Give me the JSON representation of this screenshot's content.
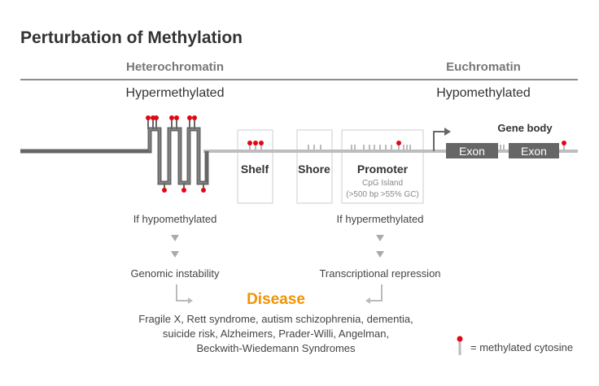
{
  "title": "Perturbation of Methylation",
  "left": {
    "header": "Heterochromatin",
    "state": "Hypermethylated",
    "condition": "If hypomethylated",
    "outcome": "Genomic instability"
  },
  "right": {
    "header": "Euchromatin",
    "state": "Hypomethylated",
    "condition": "If hypermethylated",
    "outcome": "Transcriptional repression"
  },
  "regions": {
    "shelf": "Shelf",
    "shore": "Shore",
    "promoter": "Promoter",
    "promoter_sub1": "CpG Island",
    "promoter_sub2": "(>500 bp >55% GC)",
    "gene_body": "Gene body",
    "exon1": "Exon",
    "exon2": "Exon"
  },
  "disease": {
    "title": "Disease",
    "lines": [
      "Fragile X, Rett syndrome, autism schizophrenia, dementia,",
      "suicide risk, Alzheimers, Prader-Willi, Angelman,",
      "Beckwith-Wiedemann Syndromes"
    ]
  },
  "legend": {
    "label": "= methylated cytosine"
  },
  "colors": {
    "accent": "#f39200",
    "methyl": "#e30613",
    "dark": "#666666",
    "light": "#bdbdbd"
  }
}
